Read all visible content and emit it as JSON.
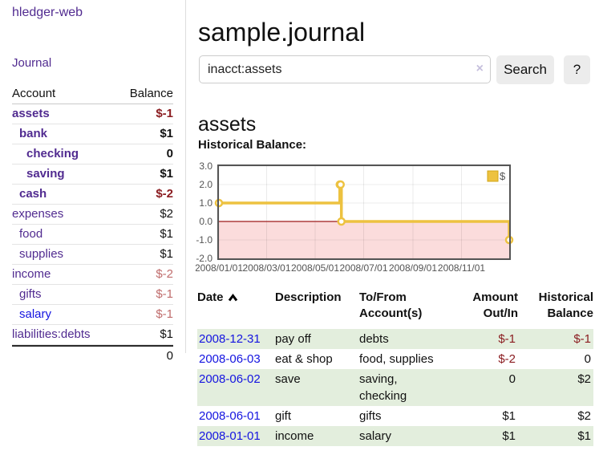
{
  "colors": {
    "accent_purple": "#512b90",
    "link_blue": "#1414e0",
    "negative_dark": "#8b1d21",
    "negative_muted": "#c06d6d",
    "row_green": "#e3eedd",
    "series_gold": "#edc240"
  },
  "sidebar": {
    "brand": "hledger-web",
    "journal_link": "Journal",
    "accounts_table": {
      "headers": {
        "account": "Account",
        "balance": "Balance"
      },
      "rows": [
        {
          "name": "assets",
          "depth": 1,
          "bold": true,
          "blue": false,
          "balance": "$-1",
          "balance_style": "neg-dark"
        },
        {
          "name": "bank",
          "depth": 2,
          "bold": true,
          "blue": false,
          "balance": "$1",
          "balance_style": "pos"
        },
        {
          "name": "checking",
          "depth": 3,
          "bold": true,
          "blue": false,
          "balance": "0",
          "balance_style": "pos"
        },
        {
          "name": "saving",
          "depth": 3,
          "bold": true,
          "blue": false,
          "balance": "$1",
          "balance_style": "pos"
        },
        {
          "name": "cash",
          "depth": 2,
          "bold": true,
          "blue": false,
          "balance": "$-2",
          "balance_style": "neg-dark"
        },
        {
          "name": "expenses",
          "depth": 1,
          "bold": false,
          "blue": false,
          "balance": "$2",
          "balance_style": "pos"
        },
        {
          "name": "food",
          "depth": 2,
          "bold": false,
          "blue": false,
          "balance": "$1",
          "balance_style": "pos"
        },
        {
          "name": "supplies",
          "depth": 2,
          "bold": false,
          "blue": false,
          "balance": "$1",
          "balance_style": "pos"
        },
        {
          "name": "income",
          "depth": 1,
          "bold": false,
          "blue": false,
          "balance": "$-2",
          "balance_style": "neg-light"
        },
        {
          "name": "gifts",
          "depth": 2,
          "bold": false,
          "blue": false,
          "balance": "$-1",
          "balance_style": "neg-light"
        },
        {
          "name": "salary",
          "depth": 2,
          "bold": false,
          "blue": true,
          "balance": "$-1",
          "balance_style": "neg-light"
        },
        {
          "name": "liabilities:debts",
          "depth": 1,
          "bold": false,
          "blue": false,
          "balance": "$1",
          "balance_style": "pos"
        }
      ],
      "total": "0"
    }
  },
  "header": {
    "title": "sample.journal"
  },
  "search": {
    "value": "inacct:assets",
    "clear_icon": "×",
    "button_label": "Search",
    "help_label": "?"
  },
  "account_page": {
    "heading": "assets",
    "chart_label": "Historical Balance:"
  },
  "chart_data": {
    "type": "line",
    "step": true,
    "title": "Historical Balance",
    "x_domain": [
      "2008-01-01",
      "2008-12-31"
    ],
    "ylim": [
      -2,
      3
    ],
    "y_ticks": [
      {
        "label": "3.0",
        "value": 3
      },
      {
        "label": "2.0",
        "value": 2
      },
      {
        "label": "1.0",
        "value": 1
      },
      {
        "label": "0.0",
        "value": 0
      },
      {
        "label": "-1.0",
        "value": -1
      },
      {
        "label": "-2.0",
        "value": -2
      }
    ],
    "x_ticks": [
      {
        "label": "2008/01/01",
        "date": "2008-01-01"
      },
      {
        "label": "2008/03/01",
        "date": "2008-03-01"
      },
      {
        "label": "2008/05/01",
        "date": "2008-05-01"
      },
      {
        "label": "2008/07/01",
        "date": "2008-07-01"
      },
      {
        "label": "2008/09/01",
        "date": "2008-09-01"
      },
      {
        "label": "2008/11/01",
        "date": "2008-11-01"
      }
    ],
    "series": [
      {
        "name": "$",
        "color": "#edc240",
        "points": [
          {
            "date": "2008-01-01",
            "value": 1
          },
          {
            "date": "2008-06-01",
            "value": 2
          },
          {
            "date": "2008-06-02",
            "value": 2
          },
          {
            "date": "2008-06-03",
            "value": 0
          },
          {
            "date": "2008-12-31",
            "value": -1
          }
        ]
      }
    ],
    "legend": {
      "label": "$",
      "position": "top-right"
    },
    "negative_region_color": "#fbdcdc",
    "zero_line_color": "#9e1b1b",
    "grid": true
  },
  "transactions": {
    "columns": [
      {
        "label": "Date",
        "sort": "asc"
      },
      {
        "label": "Description"
      },
      {
        "label": "To/From\nAccount(s)"
      },
      {
        "label": "Amount\nOut/In",
        "align": "right"
      },
      {
        "label": "Historical\nBalance",
        "align": "right"
      }
    ],
    "rows": [
      {
        "date": "2008-12-31",
        "description": "pay off",
        "tofrom": "debts",
        "amount": "$-1",
        "amount_neg": true,
        "balance": "$-1",
        "balance_neg": true,
        "green": true
      },
      {
        "date": "2008-06-03",
        "description": "eat & shop",
        "tofrom": "food, supplies",
        "amount": "$-2",
        "amount_neg": true,
        "balance": "0",
        "balance_neg": false,
        "green": false
      },
      {
        "date": "2008-06-02",
        "description": "save",
        "tofrom": "saving,\nchecking",
        "amount": "0",
        "amount_neg": false,
        "balance": "$2",
        "balance_neg": false,
        "green": true
      },
      {
        "date": "2008-06-01",
        "description": "gift",
        "tofrom": "gifts",
        "amount": "$1",
        "amount_neg": false,
        "balance": "$2",
        "balance_neg": false,
        "green": false
      },
      {
        "date": "2008-01-01",
        "description": "income",
        "tofrom": "salary",
        "amount": "$1",
        "amount_neg": false,
        "balance": "$1",
        "balance_neg": false,
        "green": true
      }
    ]
  }
}
